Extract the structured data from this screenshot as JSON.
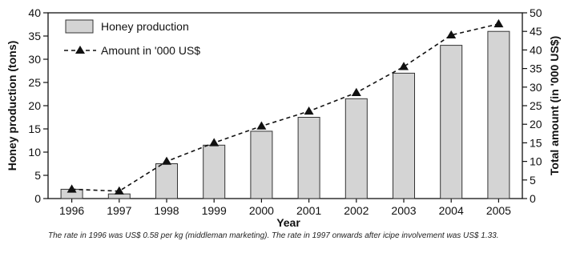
{
  "chart_data": {
    "type": "bar",
    "categories": [
      "1996",
      "1997",
      "1998",
      "1999",
      "2000",
      "2001",
      "2002",
      "2003",
      "2004",
      "2005"
    ],
    "series": [
      {
        "name": "Honey production",
        "type": "bar",
        "axis": "left",
        "values": [
          2,
          1,
          7.5,
          11.5,
          14.5,
          17.5,
          21.5,
          27,
          33,
          36
        ]
      },
      {
        "name": "Amount in '000 US$",
        "type": "line",
        "axis": "right",
        "style": "dashed with triangle markers",
        "values": [
          2.5,
          2,
          10,
          15,
          19.5,
          23.5,
          28.5,
          35.5,
          44,
          47
        ]
      }
    ],
    "xlabel": "Year",
    "ylabel_left": "Honey production (tons)",
    "ylabel_right": "Total amount (in '000 US$)",
    "ylim_left": [
      0,
      40
    ],
    "ylim_right": [
      0,
      50
    ],
    "yticks_left": [
      0,
      5,
      10,
      15,
      20,
      25,
      30,
      35,
      40
    ],
    "yticks_right": [
      0,
      5,
      10,
      15,
      20,
      25,
      30,
      35,
      40,
      45,
      50
    ],
    "grid": false,
    "legend_position": "top-left",
    "colors": {
      "bar_fill": "#d4d4d4",
      "bar_stroke": "#333333",
      "line": "#111111"
    }
  },
  "note": "The rate in 1996 was US$ 0.58 per kg (middleman marketing). The rate in 1997 onwards after icipe involvement was US$ 1.33."
}
